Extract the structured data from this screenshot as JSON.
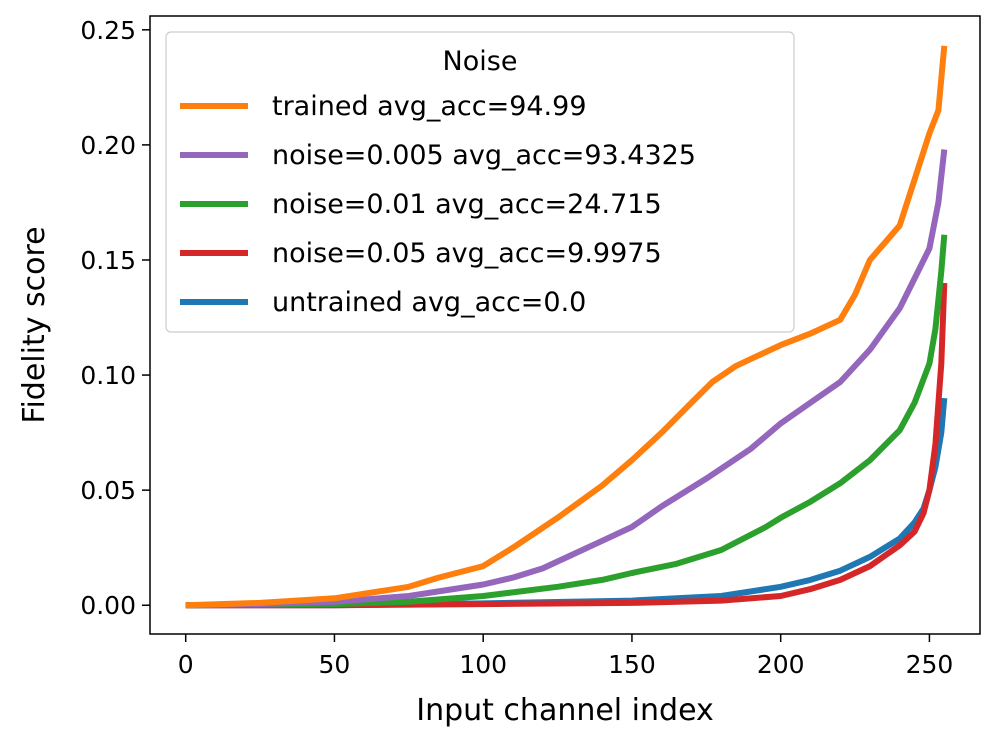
{
  "chart_data": {
    "type": "line",
    "xlabel": "Input channel index",
    "ylabel": "Fidelity score",
    "xlim": [
      -12,
      267
    ],
    "ylim": [
      -0.0125,
      0.256
    ],
    "xticks": [
      0,
      50,
      100,
      150,
      200,
      250
    ],
    "xtick_labels": [
      "0",
      "50",
      "100",
      "150",
      "200",
      "250"
    ],
    "yticks": [
      0.0,
      0.05,
      0.1,
      0.15,
      0.2,
      0.25
    ],
    "ytick_labels": [
      "0.00",
      "0.05",
      "0.10",
      "0.15",
      "0.20",
      "0.25"
    ],
    "grid": false,
    "legend": {
      "title": "Noise",
      "position": "top-left"
    },
    "series": [
      {
        "name": "trained avg_acc=94.99",
        "color": "#ff7f0e",
        "x": [
          0,
          25,
          50,
          60,
          75,
          85,
          100,
          110,
          125,
          140,
          150,
          160,
          170,
          177,
          185,
          190,
          200,
          210,
          220,
          225,
          230,
          240,
          245,
          250,
          253,
          255
        ],
        "y": [
          0.0,
          0.001,
          0.003,
          0.005,
          0.008,
          0.012,
          0.017,
          0.025,
          0.038,
          0.052,
          0.063,
          0.075,
          0.088,
          0.097,
          0.104,
          0.107,
          0.113,
          0.118,
          0.124,
          0.135,
          0.15,
          0.165,
          0.185,
          0.205,
          0.215,
          0.243
        ]
      },
      {
        "name": "noise=0.005 avg_acc=93.4325",
        "color": "#9467bd",
        "x": [
          0,
          25,
          50,
          75,
          85,
          100,
          110,
          120,
          130,
          140,
          150,
          160,
          175,
          190,
          200,
          210,
          220,
          230,
          240,
          245,
          250,
          253,
          255
        ],
        "y": [
          0.0,
          0.0005,
          0.0015,
          0.004,
          0.006,
          0.009,
          0.012,
          0.016,
          0.022,
          0.028,
          0.034,
          0.043,
          0.055,
          0.068,
          0.079,
          0.088,
          0.097,
          0.111,
          0.129,
          0.142,
          0.155,
          0.175,
          0.198
        ]
      },
      {
        "name": "noise=0.01 avg_acc=24.715",
        "color": "#2ca02c",
        "x": [
          0,
          50,
          75,
          100,
          125,
          140,
          150,
          165,
          180,
          195,
          200,
          210,
          220,
          230,
          240,
          245,
          250,
          252,
          254,
          255
        ],
        "y": [
          0.0,
          0.0005,
          0.0015,
          0.004,
          0.008,
          0.011,
          0.014,
          0.018,
          0.024,
          0.034,
          0.038,
          0.045,
          0.053,
          0.063,
          0.076,
          0.088,
          0.105,
          0.12,
          0.145,
          0.161
        ]
      },
      {
        "name": "noise=0.05 avg_acc=9.9975",
        "color": "#d62728",
        "x": [
          0,
          50,
          100,
          150,
          180,
          200,
          210,
          220,
          230,
          240,
          245,
          248,
          250,
          252,
          254,
          255
        ],
        "y": [
          0.0,
          0.0,
          0.0005,
          0.001,
          0.002,
          0.004,
          0.007,
          0.011,
          0.017,
          0.026,
          0.032,
          0.04,
          0.05,
          0.07,
          0.105,
          0.14
        ]
      },
      {
        "name": "untrained avg_acc=0.0",
        "color": "#1f77b4",
        "x": [
          0,
          50,
          100,
          150,
          180,
          200,
          210,
          220,
          230,
          240,
          245,
          248,
          250,
          252,
          254,
          255
        ],
        "y": [
          0.0,
          0.0,
          0.0008,
          0.002,
          0.004,
          0.008,
          0.011,
          0.015,
          0.021,
          0.029,
          0.036,
          0.042,
          0.05,
          0.06,
          0.075,
          0.09
        ]
      }
    ]
  }
}
